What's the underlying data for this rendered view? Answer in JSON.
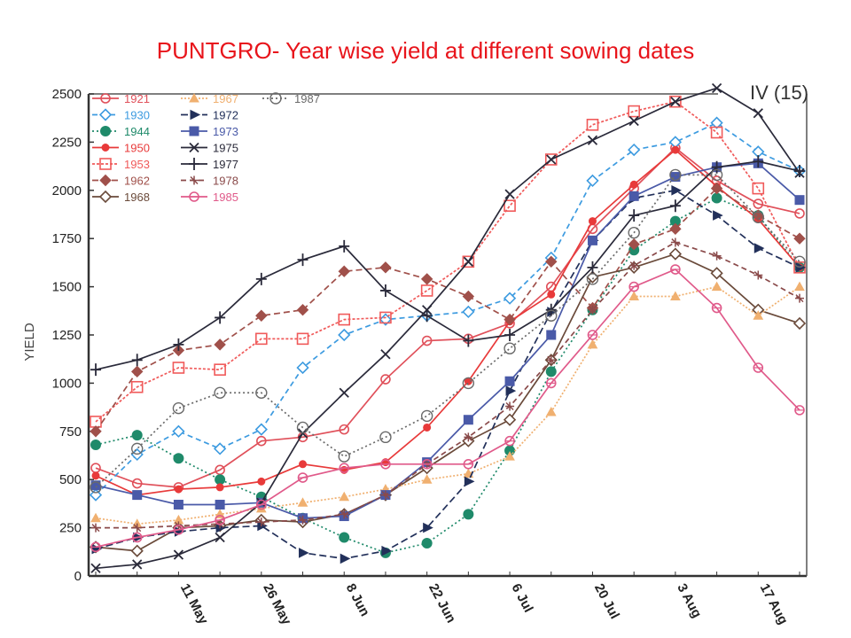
{
  "title": "PUNTGRO- Year wise yield at different sowing dates",
  "chart_data": {
    "type": "line",
    "panel_label": "IV (15)",
    "ylabel": "YIELD",
    "xlabel": "",
    "ylim": [
      0,
      2500
    ],
    "yticks": [
      0,
      250,
      500,
      750,
      1000,
      1250,
      1500,
      1750,
      2000,
      2250,
      2500
    ],
    "x_tick_labels": [
      {
        "label": "11 May",
        "pos": 2
      },
      {
        "label": "26 May",
        "pos": 4
      },
      {
        "label": "8 Jun",
        "pos": 6
      },
      {
        "label": "22 Jun",
        "pos": 8
      },
      {
        "label": "6 Jul",
        "pos": 10
      },
      {
        "label": "20 Jul",
        "pos": 12
      },
      {
        "label": "3 Aug",
        "pos": 14
      },
      {
        "label": "17 Aug",
        "pos": 16
      }
    ],
    "x": [
      0,
      1,
      2,
      3,
      4,
      5,
      6,
      7,
      8,
      9,
      10,
      11,
      12,
      13,
      14,
      15,
      16,
      17
    ],
    "grid": false,
    "legend_position": "top-left",
    "series": [
      {
        "name": "1921",
        "color": "#e0505a",
        "marker": "circle",
        "dash": "",
        "values": [
          560,
          480,
          460,
          550,
          700,
          720,
          760,
          1020,
          1220,
          1230,
          1310,
          1500,
          1800,
          2010,
          2220,
          2050,
          1930,
          1880
        ]
      },
      {
        "name": "1930",
        "color": "#3d9be0",
        "marker": "diamond-open",
        "dash": "6,4",
        "values": [
          420,
          630,
          750,
          660,
          760,
          1080,
          1250,
          1330,
          1350,
          1370,
          1440,
          1650,
          2050,
          2210,
          2250,
          2350,
          2200,
          2100
        ]
      },
      {
        "name": "1944",
        "color": "#1f8a6a",
        "marker": "dot",
        "dash": "2,3",
        "values": [
          680,
          730,
          610,
          500,
          410,
          300,
          200,
          120,
          170,
          320,
          650,
          1060,
          1380,
          1690,
          1840,
          1960,
          1870,
          1600
        ]
      },
      {
        "name": "1950",
        "color": "#e83a3a",
        "marker": "star",
        "dash": "",
        "values": [
          520,
          420,
          450,
          460,
          490,
          580,
          550,
          590,
          770,
          1010,
          1320,
          1460,
          1840,
          2030,
          2210,
          2020,
          1850,
          1600
        ]
      },
      {
        "name": "1953",
        "color": "#f05a5a",
        "marker": "square-open",
        "dash": "3,2",
        "values": [
          800,
          980,
          1080,
          1070,
          1230,
          1230,
          1330,
          1340,
          1480,
          1630,
          1920,
          2160,
          2340,
          2410,
          2460,
          2300,
          2010,
          1600
        ]
      },
      {
        "name": "1962",
        "color": "#a0504a",
        "marker": "diamond",
        "dash": "7,4",
        "values": [
          750,
          1060,
          1170,
          1200,
          1350,
          1380,
          1580,
          1600,
          1540,
          1450,
          1330,
          1630,
          1390,
          1720,
          1800,
          2010,
          1870,
          1750
        ]
      },
      {
        "name": "1968",
        "color": "#6a4a3a",
        "marker": "diamond-open",
        "dash": "",
        "values": [
          150,
          130,
          250,
          260,
          290,
          280,
          320,
          420,
          560,
          700,
          810,
          1120,
          1550,
          1600,
          1670,
          1570,
          1380,
          1310
        ]
      },
      {
        "name": "1967",
        "color": "#f0b070",
        "marker": "triangle",
        "dash": "2,2",
        "values": [
          300,
          270,
          290,
          320,
          350,
          380,
          410,
          450,
          500,
          530,
          620,
          850,
          1200,
          1450,
          1450,
          1500,
          1350,
          1500
        ]
      },
      {
        "name": "1972",
        "color": "#22305a",
        "marker": "arrow",
        "dash": "8,4",
        "values": [
          140,
          200,
          230,
          250,
          260,
          120,
          90,
          130,
          250,
          490,
          960,
          1370,
          1740,
          1960,
          2000,
          1870,
          1700,
          1600
        ]
      },
      {
        "name": "1973",
        "color": "#4a5aa8",
        "marker": "square",
        "dash": "",
        "values": [
          470,
          420,
          370,
          370,
          380,
          300,
          310,
          420,
          590,
          810,
          1010,
          1250,
          1740,
          1970,
          2070,
          2120,
          2140,
          1950
        ]
      },
      {
        "name": "1975",
        "color": "#2a2a3a",
        "marker": "x",
        "dash": "",
        "values": [
          40,
          60,
          110,
          200,
          380,
          740,
          950,
          1150,
          1380,
          1630,
          1980,
          2160,
          2260,
          2360,
          2460,
          2530,
          2400,
          2090
        ]
      },
      {
        "name": "1977",
        "color": "#2a2a3a",
        "marker": "plus",
        "dash": "",
        "values": [
          1070,
          1120,
          1200,
          1340,
          1540,
          1640,
          1710,
          1480,
          1350,
          1220,
          1250,
          1380,
          1600,
          1870,
          1920,
          2120,
          2150,
          2100
        ]
      },
      {
        "name": "1978",
        "color": "#8a4a4a",
        "marker": "star4",
        "dash": "6,4",
        "values": [
          250,
          250,
          260,
          270,
          280,
          290,
          320,
          420,
          580,
          720,
          880,
          1120,
          1380,
          1610,
          1730,
          1660,
          1560,
          1440
        ]
      },
      {
        "name": "1985",
        "color": "#e05a8a",
        "marker": "circle-cross",
        "dash": "",
        "values": [
          150,
          200,
          240,
          290,
          370,
          510,
          560,
          580,
          580,
          580,
          700,
          1000,
          1250,
          1500,
          1590,
          1390,
          1080,
          860
        ]
      },
      {
        "name": "1987",
        "color": "#6a6a6a",
        "marker": "circle-dot",
        "dash": "2,3",
        "values": [
          460,
          660,
          870,
          950,
          950,
          770,
          620,
          720,
          830,
          1000,
          1180,
          1350,
          1540,
          1780,
          2080,
          2080,
          1860,
          1630
        ]
      }
    ]
  },
  "colors": {
    "title": "#e8141b"
  }
}
